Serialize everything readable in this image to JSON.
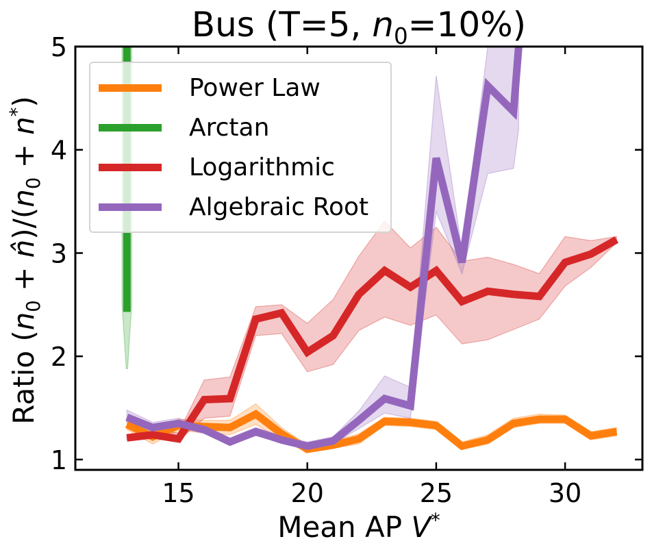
{
  "chart_data": {
    "type": "line",
    "title": "Bus (T=5, n₀=10%)",
    "xlabel": "Mean AP V*",
    "ylabel": "Ratio (n₀ + n̂)/(n₀ + n*)",
    "xlim": [
      11.0,
      33.0
    ],
    "ylim": [
      0.9,
      5.0
    ],
    "xticks": [
      15,
      20,
      25,
      30
    ],
    "yticks": [
      1,
      2,
      3,
      4,
      5
    ],
    "legend_position": "top-left",
    "series": [
      {
        "name": "Power Law",
        "color": "#ff7f0e",
        "x": [
          13,
          14,
          15,
          16,
          17,
          18,
          19,
          20,
          21,
          22,
          23,
          24,
          25,
          26,
          27,
          28,
          29,
          30,
          31,
          32
        ],
        "y": [
          1.34,
          1.22,
          1.33,
          1.32,
          1.31,
          1.44,
          1.25,
          1.1,
          1.14,
          1.2,
          1.37,
          1.36,
          1.33,
          1.13,
          1.19,
          1.35,
          1.39,
          1.39,
          1.23,
          1.27
        ],
        "lower": [
          1.29,
          1.15,
          1.28,
          1.26,
          1.24,
          1.34,
          1.19,
          1.07,
          1.11,
          1.15,
          1.33,
          1.32,
          1.29,
          1.1,
          1.15,
          1.31,
          1.35,
          1.35,
          1.19,
          1.23
        ],
        "upper": [
          1.4,
          1.3,
          1.39,
          1.38,
          1.38,
          1.54,
          1.31,
          1.14,
          1.18,
          1.25,
          1.41,
          1.4,
          1.37,
          1.17,
          1.24,
          1.4,
          1.44,
          1.43,
          1.27,
          1.31
        ]
      },
      {
        "name": "Arctan",
        "color": "#2ca02c",
        "x": [
          13,
          13
        ],
        "y": [
          5.0,
          2.43
        ],
        "lower": [
          4.8,
          1.88
        ],
        "upper": [
          5.0,
          5.0
        ]
      },
      {
        "name": "Logarithmic",
        "color": "#d62728",
        "x": [
          13,
          14,
          15,
          16,
          17,
          18,
          19,
          20,
          21,
          22,
          23,
          24,
          25,
          26,
          27,
          28,
          29,
          30,
          31,
          32
        ],
        "y": [
          1.21,
          1.24,
          1.2,
          1.58,
          1.59,
          2.36,
          2.42,
          2.04,
          2.2,
          2.6,
          2.83,
          2.67,
          2.83,
          2.53,
          2.63,
          2.6,
          2.58,
          2.91,
          2.99,
          3.13
        ],
        "lower": [
          1.19,
          1.22,
          1.18,
          1.4,
          1.42,
          2.2,
          2.22,
          1.85,
          1.92,
          2.25,
          2.38,
          2.3,
          2.4,
          2.12,
          2.16,
          2.26,
          2.36,
          2.68,
          2.86,
          3.1
        ],
        "upper": [
          1.24,
          1.27,
          1.26,
          1.77,
          1.8,
          2.48,
          2.5,
          2.32,
          2.55,
          2.97,
          3.31,
          3.05,
          3.25,
          2.92,
          2.96,
          2.89,
          2.8,
          3.16,
          3.12,
          3.16
        ]
      },
      {
        "name": "Algebraic Root",
        "color": "#9467bd",
        "x": [
          13,
          14,
          15,
          16,
          17,
          18,
          19,
          20,
          21,
          22,
          23,
          24,
          25,
          26,
          27,
          28,
          28.2
        ],
        "y": [
          1.41,
          1.31,
          1.35,
          1.29,
          1.17,
          1.27,
          1.19,
          1.13,
          1.18,
          1.38,
          1.59,
          1.52,
          3.92,
          2.91,
          4.62,
          4.37,
          5.0
        ],
        "lower": [
          1.36,
          1.27,
          1.31,
          1.25,
          1.14,
          1.23,
          1.16,
          1.1,
          1.15,
          1.3,
          1.45,
          1.4,
          3.4,
          2.8,
          3.77,
          3.82,
          4.2
        ],
        "upper": [
          1.48,
          1.36,
          1.4,
          1.33,
          1.21,
          1.31,
          1.23,
          1.17,
          1.22,
          1.47,
          1.81,
          1.7,
          4.72,
          3.02,
          5.0,
          5.0,
          5.0
        ]
      }
    ]
  }
}
